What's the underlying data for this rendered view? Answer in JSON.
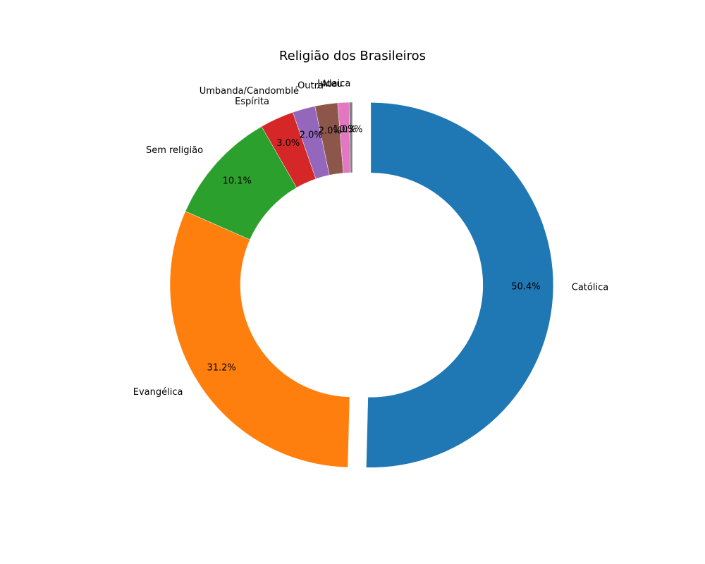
{
  "chart_data": {
    "type": "pie",
    "style": "donut",
    "title": "Religião dos Brasileiros",
    "slices": [
      {
        "label": "Católica",
        "value": 50.4,
        "pct_label": "50.4%",
        "color": "#1f77b4",
        "exploded": true
      },
      {
        "label": "Evangélica",
        "value": 31.2,
        "pct_label": "31.2%",
        "color": "#ff7f0e"
      },
      {
        "label": "Sem religião",
        "value": 10.1,
        "pct_label": "10.1%",
        "color": "#2ca02c"
      },
      {
        "label": "Espírita",
        "value": 3.0,
        "pct_label": "3.0%",
        "color": "#d62728"
      },
      {
        "label": "Umbanda/Candomblé",
        "value": 2.0,
        "pct_label": "2.0%",
        "color": "#9467bd"
      },
      {
        "label": "Outra",
        "value": 2.0,
        "pct_label": "2.0%",
        "color": "#8c564b"
      },
      {
        "label": "Ateu",
        "value": 1.0,
        "pct_label": "1.0%",
        "color": "#e377c2"
      },
      {
        "label": "Judaica",
        "value": 0.3,
        "pct_label": "0.3%",
        "color": "#7f7f7f"
      }
    ],
    "start_angle_deg": 90,
    "direction": "clockwise",
    "legend": "none"
  }
}
